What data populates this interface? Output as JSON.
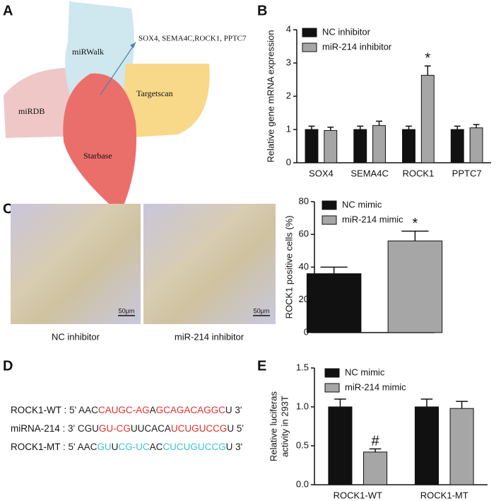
{
  "panels": [
    "A",
    "B",
    "C",
    "D",
    "E"
  ],
  "venn": {
    "sets": [
      "miRWalk",
      "miRDB",
      "Targetscan",
      "Starbase"
    ],
    "intersection": "SOX4, SEMA4C,ROCK1, PPTC7"
  },
  "micrographs": {
    "captions": [
      "NC inhibitor",
      "miR-214 inhibitor"
    ],
    "scale_bars": [
      "50μm",
      "50μm"
    ]
  },
  "sequences": {
    "rows": [
      {
        "label": "ROCK1-WT : ",
        "segments": [
          {
            "text": "5' AAC",
            "color": "#222222"
          },
          {
            "text": "CAUGC-AG",
            "color": "#e0302a"
          },
          {
            "text": "A",
            "color": "#222222"
          },
          {
            "text": "GCAGACAGGC",
            "color": "#e0302a"
          },
          {
            "text": "U 3'",
            "color": "#222222"
          }
        ]
      },
      {
        "label": "miRNA-214 : ",
        "segments": [
          {
            "text": "3' CGU",
            "color": "#222222"
          },
          {
            "text": "GU-CG",
            "color": "#e0302a"
          },
          {
            "text": "UUCACA",
            "color": "#222222"
          },
          {
            "text": "UCUGUCCG",
            "color": "#e0302a"
          },
          {
            "text": "U 5'",
            "color": "#222222"
          }
        ]
      },
      {
        "label": "ROCK1-MT : ",
        "segments": [
          {
            "text": "5' AAC",
            "color": "#222222"
          },
          {
            "text": "GU",
            "color": "#3cc4cc"
          },
          {
            "text": "U",
            "color": "#222222"
          },
          {
            "text": "CG-UC",
            "color": "#3cc4cc"
          },
          {
            "text": "AC",
            "color": "#222222"
          },
          {
            "text": "CUCUGUCCG",
            "color": "#3cc4cc"
          },
          {
            "text": "U 3'",
            "color": "#222222"
          }
        ]
      }
    ]
  },
  "chart_data": [
    {
      "type": "bar",
      "ylabel": [
        "Relative gene mRNA expression"
      ],
      "categories": [
        "SOX4",
        "SEMA4C",
        "ROCK1",
        "PPTC7"
      ],
      "series": [
        {
          "name": "NC inhibitor",
          "color": "#111111",
          "values": [
            1,
            1,
            1,
            1
          ],
          "errors": [
            0.1,
            0.1,
            0.1,
            0.1
          ]
        },
        {
          "name": "miR-214 inhibitor",
          "color": "#a6a6a6",
          "values": [
            0.97,
            1.12,
            2.63,
            1.05
          ],
          "errors": [
            0.1,
            0.13,
            0.28,
            0.1
          ],
          "markers": [
            null,
            null,
            "*",
            null
          ]
        }
      ],
      "ylim": [
        0,
        4
      ],
      "yticks": [
        0,
        1,
        2,
        3,
        4
      ],
      "grid": false
    },
    {
      "type": "bar",
      "ylabel": [
        "ROCK1 positive cells (%)"
      ],
      "categories": [
        null
      ],
      "series": [
        {
          "name": "NC mimic",
          "color": "#111111",
          "values": [
            36
          ],
          "errors": [
            4
          ]
        },
        {
          "name": "miR-214 mimic",
          "color": "#a6a6a6",
          "values": [
            56
          ],
          "errors": [
            6
          ],
          "markers": [
            "*"
          ]
        }
      ],
      "ylim": [
        0,
        80
      ],
      "yticks": [
        0,
        20,
        40,
        60,
        80
      ],
      "grid": false
    },
    {
      "type": "bar",
      "ylabel": [
        "Relative luciferas",
        "activity in 293T"
      ],
      "categories": [
        "ROCK1-WT",
        "ROCK1-MT"
      ],
      "series": [
        {
          "name": "NC mimic",
          "color": "#111111",
          "values": [
            1.0,
            1.0
          ],
          "errors": [
            0.1,
            0.1
          ]
        },
        {
          "name": "miR-214 mimic",
          "color": "#a6a6a6",
          "values": [
            0.42,
            0.98
          ],
          "errors": [
            0.04,
            0.09
          ],
          "markers": [
            "#",
            null
          ]
        }
      ],
      "ylim": [
        0,
        1.5
      ],
      "yticks": [
        {
          "value": 0,
          "label": "0.0"
        },
        {
          "value": 0.5,
          "label": "0.5"
        },
        {
          "value": 1,
          "label": "1.0"
        },
        1.5
      ],
      "grid": false
    }
  ]
}
